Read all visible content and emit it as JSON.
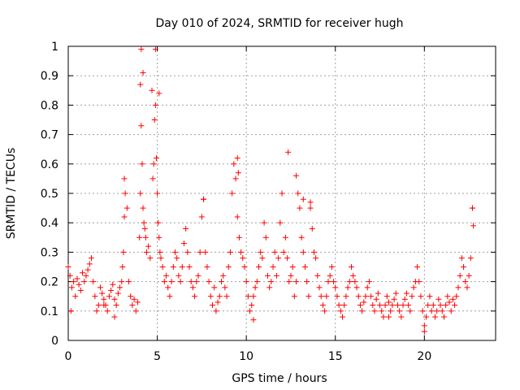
{
  "chart_data": {
    "type": "scatter",
    "title": "Day 010 of 2024, SRMTID for receiver hugh",
    "xlabel": "GPS time / hours",
    "ylabel": "SRMTID / TECUs",
    "xlim": [
      0,
      24
    ],
    "ylim": [
      0,
      1
    ],
    "xticks": [
      0,
      5,
      10,
      15,
      20
    ],
    "xtick_labels": [
      "0",
      "5",
      "10",
      "15",
      "20"
    ],
    "yticks": [
      0,
      0.1,
      0.2,
      0.3,
      0.4,
      0.5,
      0.6,
      0.7,
      0.8,
      0.9,
      1
    ],
    "ytick_labels": [
      "0",
      "0.1",
      "0.2",
      "0.3",
      "0.4",
      "0.5",
      "0.6",
      "0.7",
      "0.8",
      "0.9",
      "1"
    ],
    "grid": true,
    "marker": "+",
    "color": "#ff0000",
    "series": [
      {
        "name": "SRMTID",
        "x": [
          0.0,
          0.1,
          0.2,
          0.3,
          0.4,
          0.5,
          0.6,
          0.7,
          0.8,
          0.9,
          1.0,
          1.1,
          1.2,
          1.3,
          1.4,
          1.5,
          1.6,
          1.7,
          1.8,
          1.9,
          2.0,
          2.1,
          2.2,
          2.3,
          2.4,
          2.5,
          2.6,
          2.7,
          2.8,
          2.9,
          3.0,
          3.05,
          3.1,
          3.15,
          3.2,
          3.3,
          3.4,
          3.5,
          3.6,
          3.7,
          3.8,
          3.9,
          4.0,
          4.05,
          4.1,
          4.15,
          4.2,
          4.25,
          4.3,
          4.35,
          4.4,
          4.5,
          4.6,
          4.7,
          4.75,
          4.8,
          4.85,
          4.9,
          4.95,
          5.0,
          5.05,
          5.1,
          5.15,
          5.2,
          5.3,
          5.4,
          5.5,
          5.6,
          5.7,
          5.8,
          5.9,
          6.0,
          6.1,
          6.2,
          6.3,
          6.4,
          6.5,
          6.6,
          6.7,
          6.8,
          6.9,
          7.0,
          7.1,
          7.2,
          7.3,
          7.4,
          7.5,
          7.6,
          7.7,
          7.8,
          7.9,
          8.0,
          8.1,
          8.2,
          8.3,
          8.4,
          8.5,
          8.6,
          8.7,
          8.8,
          8.9,
          9.0,
          9.1,
          9.2,
          9.3,
          9.4,
          9.5,
          9.6,
          9.7,
          9.8,
          9.9,
          10.0,
          10.1,
          10.2,
          10.3,
          10.4,
          10.5,
          10.6,
          10.7,
          10.8,
          10.9,
          11.0,
          11.1,
          11.2,
          11.3,
          11.4,
          11.5,
          11.6,
          11.7,
          11.8,
          11.9,
          12.0,
          12.1,
          12.2,
          12.3,
          12.4,
          12.5,
          12.6,
          12.7,
          12.8,
          12.9,
          13.0,
          13.1,
          13.2,
          13.3,
          13.4,
          13.5,
          13.6,
          13.7,
          13.8,
          13.9,
          14.0,
          14.1,
          14.2,
          14.3,
          14.4,
          14.5,
          14.6,
          14.7,
          14.8,
          14.9,
          15.0,
          15.1,
          15.2,
          15.3,
          15.4,
          15.5,
          15.6,
          15.7,
          15.8,
          15.9,
          16.0,
          16.1,
          16.2,
          16.3,
          16.4,
          16.5,
          16.6,
          16.7,
          16.8,
          16.9,
          17.0,
          17.1,
          17.2,
          17.3,
          17.4,
          17.5,
          17.6,
          17.7,
          17.8,
          17.9,
          18.0,
          18.1,
          18.2,
          18.3,
          18.4,
          18.5,
          18.6,
          18.7,
          18.8,
          18.9,
          19.0,
          19.1,
          19.2,
          19.3,
          19.4,
          19.5,
          19.6,
          19.7,
          19.8,
          19.9,
          20.0,
          20.1,
          20.2,
          20.3,
          20.4,
          20.5,
          20.6,
          20.7,
          20.8,
          20.9,
          21.0,
          21.1,
          21.2,
          21.3,
          21.4,
          21.5,
          21.6,
          21.7,
          21.8,
          21.9,
          22.0,
          22.1,
          22.2,
          22.3,
          22.4,
          22.5,
          22.6,
          22.7
        ],
        "y": [
          0.25,
          0.22,
          0.18,
          0.2,
          0.15,
          0.21,
          0.19,
          0.17,
          0.23,
          0.2,
          0.22,
          0.24,
          0.26,
          0.28,
          0.2,
          0.15,
          0.1,
          0.12,
          0.18,
          0.16,
          0.14,
          0.12,
          0.1,
          0.15,
          0.17,
          0.19,
          0.14,
          0.12,
          0.16,
          0.18,
          0.2,
          0.25,
          0.3,
          0.42,
          0.5,
          0.45,
          0.2,
          0.15,
          0.12,
          0.14,
          0.1,
          0.13,
          0.35,
          0.5,
          0.73,
          0.6,
          0.45,
          0.4,
          0.38,
          0.35,
          0.3,
          0.32,
          0.28,
          0.85,
          0.55,
          0.6,
          0.75,
          0.8,
          0.62,
          0.5,
          0.4,
          0.35,
          0.3,
          0.28,
          0.25,
          0.2,
          0.22,
          0.18,
          0.15,
          0.2,
          0.25,
          0.3,
          0.28,
          0.22,
          0.2,
          0.25,
          0.33,
          0.38,
          0.3,
          0.25,
          0.2,
          0.18,
          0.15,
          0.2,
          0.22,
          0.3,
          0.42,
          0.48,
          0.3,
          0.25,
          0.2,
          0.15,
          0.12,
          0.18,
          0.1,
          0.13,
          0.15,
          0.2,
          0.22,
          0.18,
          0.15,
          0.25,
          0.3,
          0.5,
          0.6,
          0.55,
          0.42,
          0.35,
          0.3,
          0.28,
          0.25,
          0.2,
          0.15,
          0.1,
          0.12,
          0.15,
          0.18,
          0.2,
          0.25,
          0.3,
          0.28,
          0.4,
          0.35,
          0.22,
          0.18,
          0.2,
          0.25,
          0.3,
          0.22,
          0.28,
          0.4,
          0.5,
          0.3,
          0.35,
          0.28,
          0.2,
          0.22,
          0.25,
          0.15,
          0.2,
          0.5,
          0.45,
          0.35,
          0.3,
          0.25,
          0.2,
          0.15,
          0.45,
          0.38,
          0.3,
          0.28,
          0.22,
          0.18,
          0.15,
          0.12,
          0.1,
          0.15,
          0.2,
          0.22,
          0.25,
          0.2,
          0.18,
          0.15,
          0.12,
          0.1,
          0.08,
          0.12,
          0.15,
          0.18,
          0.2,
          0.25,
          0.22,
          0.2,
          0.18,
          0.15,
          0.12,
          0.1,
          0.13,
          0.15,
          0.18,
          0.2,
          0.15,
          0.12,
          0.1,
          0.14,
          0.16,
          0.12,
          0.1,
          0.08,
          0.12,
          0.15,
          0.13,
          0.1,
          0.12,
          0.14,
          0.16,
          0.12,
          0.1,
          0.08,
          0.12,
          0.14,
          0.16,
          0.12,
          0.1,
          0.15,
          0.18,
          0.2,
          0.25,
          0.2,
          0.15,
          0.1,
          0.05,
          0.08,
          0.12,
          0.15,
          0.1,
          0.12,
          0.08,
          0.1,
          0.14,
          0.12,
          0.1,
          0.08,
          0.12,
          0.15,
          0.13,
          0.1,
          0.14,
          0.12,
          0.15,
          0.18,
          0.22,
          0.28,
          0.25,
          0.2,
          0.18,
          0.22,
          0.28,
          0.45
        ],
        "extra_x": [
          4.1,
          4.2,
          4.9,
          5.1,
          3.15,
          9.5,
          9.55,
          12.35,
          12.8,
          13.2,
          13.6,
          22.7,
          22.75,
          4.05,
          2.0,
          2.6,
          7.6,
          10.4,
          0.15,
          18.0,
          20.0
        ],
        "extra_y": [
          0.99,
          0.91,
          0.99,
          0.84,
          0.55,
          0.62,
          0.57,
          0.64,
          0.56,
          0.48,
          0.47,
          0.45,
          0.39,
          0.87,
          0.12,
          0.08,
          0.48,
          0.07,
          0.1,
          0.08,
          0.03
        ]
      }
    ]
  }
}
